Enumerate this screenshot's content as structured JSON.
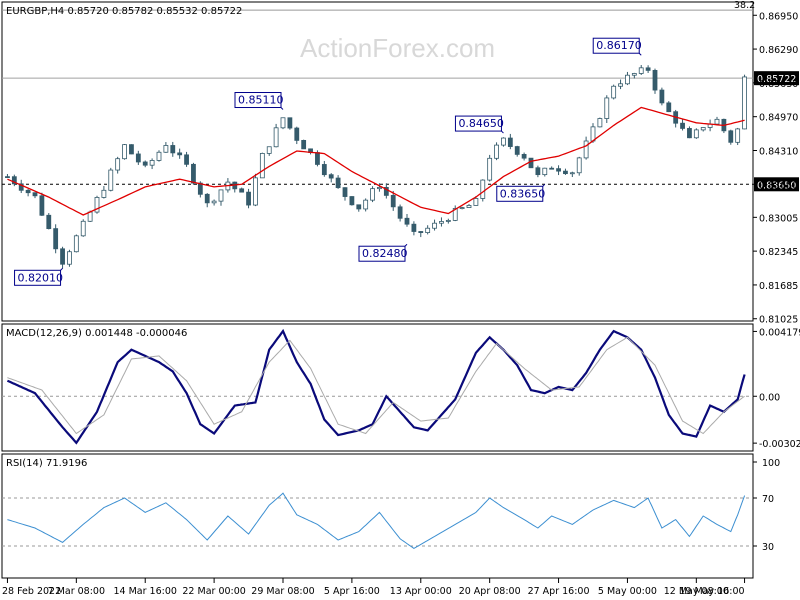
{
  "watermark": "ActionForex.com",
  "colors": {
    "candle": "#355b6b",
    "ma": "#e00000",
    "macd": "#0a0a7a",
    "signal": "#aaaaaa",
    "rsi": "#3c8fd1",
    "annotation": "#00008b",
    "price_label_bg": "#000000"
  },
  "chart_data": [
    {
      "type": "candlestick",
      "header": "EURGBP,H4 0.85720 0.85782 0.85532 0.85722",
      "ylim": [
        0.8102,
        0.8717
      ],
      "y_ticks": [
        "0.86950",
        "0.86290",
        "0.85630",
        "0.84970",
        "0.84310",
        "0.83650",
        "0.83005",
        "0.82345",
        "0.81685",
        "0.81025"
      ],
      "y_tick_values": [
        0.8695,
        0.8629,
        0.8563,
        0.8497,
        0.8431,
        0.8365,
        0.83005,
        0.82345,
        0.81685,
        0.81025
      ],
      "fib_label": "38.2",
      "fib_level": 0.8705,
      "horizontal_levels": [
        {
          "value": 0.85722,
          "label": "0.85722",
          "style": "solid-gray"
        },
        {
          "value": 0.8365,
          "label": "0.83650",
          "style": "dashed-black"
        }
      ],
      "annotations": [
        {
          "text": "0.82010",
          "value": 0.8201,
          "position": "below",
          "index": 8
        },
        {
          "text": "0.85110",
          "value": 0.8511,
          "position": "above",
          "index": 40
        },
        {
          "text": "0.82480",
          "value": 0.8248,
          "position": "below",
          "index": 58
        },
        {
          "text": "0.84650",
          "value": 0.8465,
          "position": "above",
          "index": 72
        },
        {
          "text": "0.83650",
          "value": 0.8365,
          "position": "below",
          "index": 78
        },
        {
          "text": "0.86170",
          "value": 0.8617,
          "position": "above",
          "index": 92
        }
      ],
      "close_path": [
        [
          0,
          0.838
        ],
        [
          4,
          0.834
        ],
        [
          8,
          0.8215
        ],
        [
          11,
          0.8285
        ],
        [
          14,
          0.836
        ],
        [
          17,
          0.844
        ],
        [
          20,
          0.8395
        ],
        [
          23,
          0.8445
        ],
        [
          26,
          0.84
        ],
        [
          29,
          0.8325
        ],
        [
          32,
          0.837
        ],
        [
          35,
          0.833
        ],
        [
          37,
          0.842
        ],
        [
          40,
          0.8495
        ],
        [
          42,
          0.8455
        ],
        [
          45,
          0.841
        ],
        [
          48,
          0.8355
        ],
        [
          51,
          0.832
        ],
        [
          54,
          0.8365
        ],
        [
          57,
          0.83
        ],
        [
          59,
          0.8265
        ],
        [
          62,
          0.8285
        ],
        [
          65,
          0.831
        ],
        [
          68,
          0.833
        ],
        [
          70,
          0.842
        ],
        [
          72,
          0.845
        ],
        [
          75,
          0.842
        ],
        [
          77,
          0.838
        ],
        [
          79,
          0.84
        ],
        [
          82,
          0.839
        ],
        [
          85,
          0.847
        ],
        [
          88,
          0.856
        ],
        [
          91,
          0.858
        ],
        [
          93,
          0.859
        ],
        [
          95,
          0.852
        ],
        [
          97,
          0.849
        ],
        [
          99,
          0.845
        ],
        [
          101,
          0.848
        ],
        [
          103,
          0.849
        ],
        [
          105,
          0.845
        ],
        [
          106,
          0.8472
        ],
        [
          107,
          0.8572
        ]
      ],
      "ma_path": [
        [
          0,
          0.8375
        ],
        [
          6,
          0.834
        ],
        [
          11,
          0.8305
        ],
        [
          16,
          0.8335
        ],
        [
          20,
          0.836
        ],
        [
          25,
          0.8375
        ],
        [
          30,
          0.836
        ],
        [
          34,
          0.8365
        ],
        [
          38,
          0.84
        ],
        [
          42,
          0.843
        ],
        [
          46,
          0.8425
        ],
        [
          50,
          0.839
        ],
        [
          55,
          0.8355
        ],
        [
          60,
          0.832
        ],
        [
          64,
          0.8308
        ],
        [
          68,
          0.834
        ],
        [
          72,
          0.838
        ],
        [
          76,
          0.841
        ],
        [
          80,
          0.842
        ],
        [
          84,
          0.844
        ],
        [
          88,
          0.848
        ],
        [
          92,
          0.8515
        ],
        [
          96,
          0.85
        ],
        [
          100,
          0.8485
        ],
        [
          104,
          0.848
        ],
        [
          107,
          0.849
        ]
      ]
    },
    {
      "type": "line",
      "header": "MACD(12,26,9) 0.001448 -0.000046",
      "ylim": [
        -0.0034,
        0.0044
      ],
      "y_ticks": [
        "0.004179",
        "0.00",
        "-0.003022"
      ],
      "y_tick_values": [
        0.004179,
        0.0,
        -0.003022
      ],
      "zero_label_value": 0.0,
      "series": [
        {
          "role": "macd",
          "points": [
            [
              0,
              0.001
            ],
            [
              4,
              0.0002
            ],
            [
              8,
              -0.002
            ],
            [
              10,
              -0.003
            ],
            [
              13,
              -0.001
            ],
            [
              16,
              0.0022
            ],
            [
              18,
              0.003
            ],
            [
              20,
              0.0026
            ],
            [
              22,
              0.0022
            ],
            [
              24,
              0.0016
            ],
            [
              26,
              0.0002
            ],
            [
              28,
              -0.0018
            ],
            [
              30,
              -0.0024
            ],
            [
              33,
              -0.0006
            ],
            [
              36,
              -0.0004
            ],
            [
              38,
              0.003
            ],
            [
              40,
              0.0042
            ],
            [
              42,
              0.0022
            ],
            [
              44,
              0.0008
            ],
            [
              46,
              -0.0015
            ],
            [
              48,
              -0.0025
            ],
            [
              51,
              -0.0022
            ],
            [
              53,
              -0.0018
            ],
            [
              55,
              0.0
            ],
            [
              57,
              -0.001
            ],
            [
              59,
              -0.002
            ],
            [
              61,
              -0.0022
            ],
            [
              63,
              -0.0012
            ],
            [
              65,
              -0.0002
            ],
            [
              68,
              0.0028
            ],
            [
              70,
              0.0038
            ],
            [
              72,
              0.003
            ],
            [
              74,
              0.002
            ],
            [
              76,
              0.0004
            ],
            [
              78,
              0.0002
            ],
            [
              80,
              0.0006
            ],
            [
              82,
              0.0004
            ],
            [
              84,
              0.0015
            ],
            [
              86,
              0.003
            ],
            [
              88,
              0.0042
            ],
            [
              90,
              0.0038
            ],
            [
              92,
              0.003
            ],
            [
              94,
              0.0012
            ],
            [
              96,
              -0.0012
            ],
            [
              98,
              -0.0024
            ],
            [
              100,
              -0.0026
            ],
            [
              102,
              -0.0006
            ],
            [
              104,
              -0.001
            ],
            [
              106,
              -0.0002
            ],
            [
              107,
              0.0014
            ]
          ]
        },
        {
          "role": "signal",
          "points": [
            [
              0,
              0.0012
            ],
            [
              5,
              0.0004
            ],
            [
              10,
              -0.0024
            ],
            [
              14,
              -0.0012
            ],
            [
              18,
              0.0024
            ],
            [
              22,
              0.0026
            ],
            [
              26,
              0.001
            ],
            [
              30,
              -0.0018
            ],
            [
              34,
              -0.001
            ],
            [
              38,
              0.0022
            ],
            [
              41,
              0.0036
            ],
            [
              44,
              0.0018
            ],
            [
              48,
              -0.0018
            ],
            [
              52,
              -0.0024
            ],
            [
              56,
              -0.0004
            ],
            [
              60,
              -0.0016
            ],
            [
              64,
              -0.0014
            ],
            [
              68,
              0.0016
            ],
            [
              71,
              0.0034
            ],
            [
              75,
              0.0018
            ],
            [
              79,
              0.0004
            ],
            [
              83,
              0.0006
            ],
            [
              87,
              0.003
            ],
            [
              90,
              0.0038
            ],
            [
              94,
              0.002
            ],
            [
              98,
              -0.0016
            ],
            [
              101,
              -0.0024
            ],
            [
              104,
              -0.001
            ],
            [
              107,
              0.0
            ]
          ]
        }
      ]
    },
    {
      "type": "line",
      "header": "RSI(14) 71.9196",
      "ylim": [
        5,
        105
      ],
      "y_ticks": [
        "100",
        "70",
        "30"
      ],
      "y_tick_values": [
        100,
        70,
        30
      ],
      "levels": [
        70,
        30
      ],
      "series": [
        {
          "role": "rsi",
          "points": [
            [
              0,
              52
            ],
            [
              4,
              45
            ],
            [
              8,
              33
            ],
            [
              11,
              48
            ],
            [
              14,
              62
            ],
            [
              17,
              70
            ],
            [
              20,
              58
            ],
            [
              23,
              66
            ],
            [
              26,
              52
            ],
            [
              29,
              35
            ],
            [
              32,
              55
            ],
            [
              35,
              40
            ],
            [
              38,
              64
            ],
            [
              40,
              74
            ],
            [
              42,
              56
            ],
            [
              45,
              48
            ],
            [
              48,
              35
            ],
            [
              51,
              42
            ],
            [
              54,
              58
            ],
            [
              57,
              36
            ],
            [
              59,
              28
            ],
            [
              62,
              38
            ],
            [
              65,
              48
            ],
            [
              68,
              58
            ],
            [
              70,
              70
            ],
            [
              72,
              62
            ],
            [
              75,
              52
            ],
            [
              77,
              45
            ],
            [
              79,
              55
            ],
            [
              82,
              48
            ],
            [
              85,
              60
            ],
            [
              88,
              68
            ],
            [
              91,
              62
            ],
            [
              93,
              70
            ],
            [
              95,
              45
            ],
            [
              97,
              52
            ],
            [
              99,
              38
            ],
            [
              101,
              55
            ],
            [
              103,
              48
            ],
            [
              105,
              42
            ],
            [
              106,
              56
            ],
            [
              107,
              72
            ]
          ]
        }
      ]
    }
  ],
  "x_axis": {
    "labels": [
      "28 Feb 2022",
      "7 Mar 08:00",
      "14 Mar 16:00",
      "22 Mar 00:00",
      "29 Mar 08:00",
      "5 Apr 16:00",
      "13 Apr 00:00",
      "20 Apr 08:00",
      "27 Apr 16:00",
      "5 May 00:00",
      "12 May 08:00",
      "19 May 16:00"
    ],
    "label_index": [
      0,
      10,
      20,
      30,
      40,
      50,
      60,
      70,
      80,
      90,
      100,
      107
    ]
  }
}
